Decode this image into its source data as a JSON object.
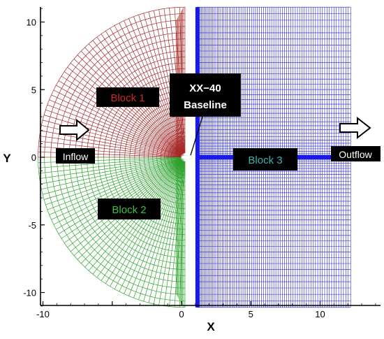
{
  "figure": {
    "x_axis": {
      "label": "X",
      "range": [
        -10,
        14
      ],
      "ticks": [
        {
          "value": -10,
          "label": "-10"
        },
        {
          "value": -5,
          "label": ""
        },
        {
          "value": 0,
          "label": "0"
        },
        {
          "value": 5,
          "label": "5"
        },
        {
          "value": 10,
          "label": "10"
        }
      ]
    },
    "y_axis": {
      "label": "Y",
      "range": [
        -11,
        11
      ],
      "ticks": [
        {
          "value": 10,
          "label": "10"
        },
        {
          "value": 5,
          "label": "5"
        },
        {
          "value": 0,
          "label": "0"
        },
        {
          "value": -5,
          "label": "-5"
        },
        {
          "value": -10,
          "label": "-10"
        }
      ]
    },
    "labels": {
      "block1": "Block 1",
      "block2": "Block 2",
      "block3": "Block 3",
      "airfoil_line1": "XX−40",
      "airfoil_line2": "Baseline",
      "inflow": "Inflow",
      "outflow": "Outflow"
    },
    "colors": {
      "block1": "#a52a2a",
      "block2": "#2ea32e",
      "block3": "#2222cc",
      "block3_strong": "#1a1ae6",
      "label_box": "#000000",
      "block1_text": "#cc2a2a",
      "block2_text": "#3fbf3f",
      "block3_text": "#3fb0b0",
      "inflow_text": "#ffffff"
    }
  }
}
